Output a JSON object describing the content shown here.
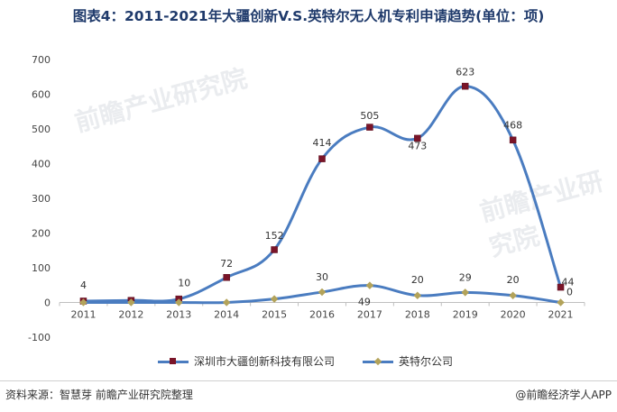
{
  "title": "图表4：2011-2021年大疆创新V.S.英特尔无人机专利申请趋势(单位：项)",
  "source": "资料来源：智慧芽 前瞻产业研究院整理",
  "brand": "@前瞻经济学人APP",
  "watermark_text": "前瞻产业研究院",
  "colors": {
    "line": "#4a7cc0",
    "dji_marker": "#7a1428",
    "intel_marker": "#b3a35a",
    "title": "#1f3a6b"
  },
  "chart_data": {
    "type": "line",
    "categories": [
      "2011",
      "2012",
      "2013",
      "2014",
      "2015",
      "2016",
      "2017",
      "2018",
      "2019",
      "2020",
      "2021"
    ],
    "ylim": [
      -100,
      700
    ],
    "yticks": [
      -100,
      0,
      100,
      200,
      300,
      400,
      500,
      600,
      700
    ],
    "grid": false,
    "legend_position": "bottom",
    "series": [
      {
        "name": "深圳市大疆创新科技有限公司",
        "values": [
          4,
          6,
          10,
          72,
          152,
          414,
          505,
          473,
          623,
          468,
          44
        ],
        "data_labels": [
          "4",
          null,
          "10",
          "72",
          "152",
          "414",
          "505",
          "473",
          "623",
          "468",
          "44"
        ]
      },
      {
        "name": "英特尔公司",
        "values": [
          0,
          0,
          0,
          0,
          10,
          30,
          49,
          20,
          29,
          20,
          0
        ],
        "data_labels": [
          null,
          null,
          null,
          null,
          null,
          "30",
          "49",
          "20",
          "29",
          "20",
          "0"
        ]
      }
    ]
  }
}
